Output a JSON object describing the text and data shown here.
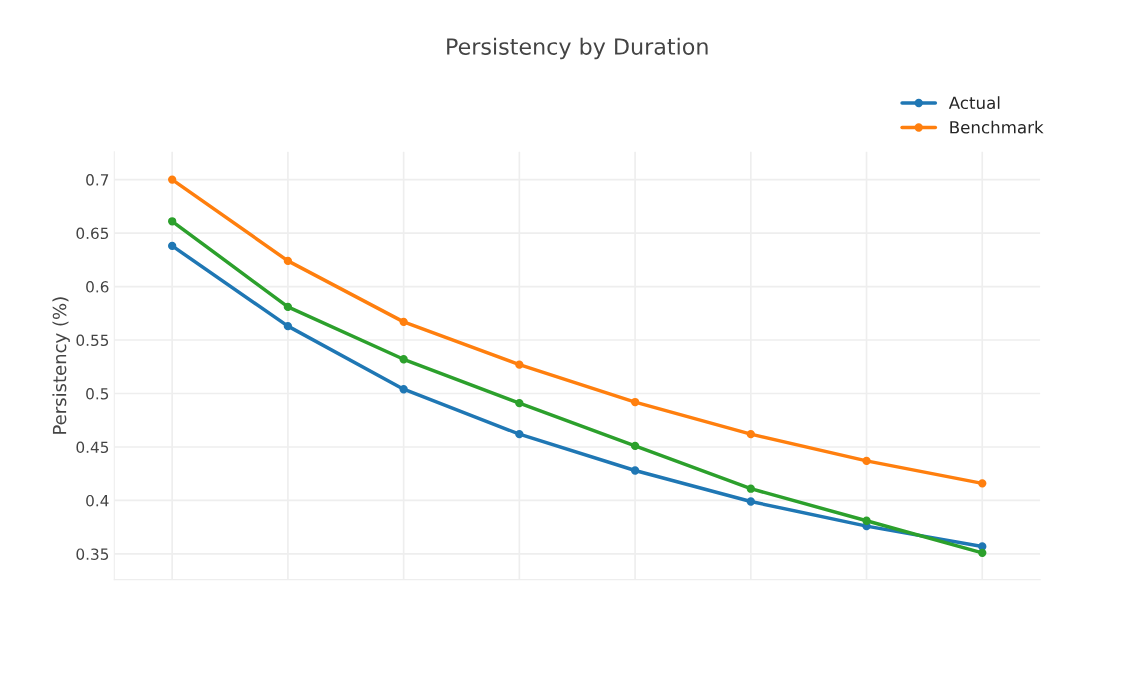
{
  "chart_data": {
    "type": "line",
    "title": "Persistency by Duration",
    "ylabel": "Persistency (%)",
    "categories": [
      null,
      null,
      null,
      null,
      null,
      null,
      null,
      null
    ],
    "series": [
      {
        "name": "Actual",
        "color": "#1f77b4",
        "values": [
          0.638,
          0.563,
          0.504,
          0.462,
          0.428,
          0.399,
          0.376,
          0.357
        ]
      },
      {
        "name": "Benchmark",
        "color": "#ff7f0e",
        "values": [
          0.7,
          0.624,
          0.567,
          0.527,
          0.492,
          0.462,
          0.437,
          0.416
        ]
      },
      {
        "color": "#2ca02c",
        "values": [
          0.661,
          0.581,
          0.532,
          0.491,
          0.451,
          0.411,
          0.381,
          0.351
        ]
      }
    ],
    "ylim": [
      0.326,
      0.726
    ],
    "yticks": [
      0.35,
      0.4,
      0.45,
      0.5,
      0.55,
      0.6,
      0.65,
      0.7
    ],
    "grid": true,
    "legend": "top right",
    "marker": "circle",
    "line_style": "solid"
  }
}
